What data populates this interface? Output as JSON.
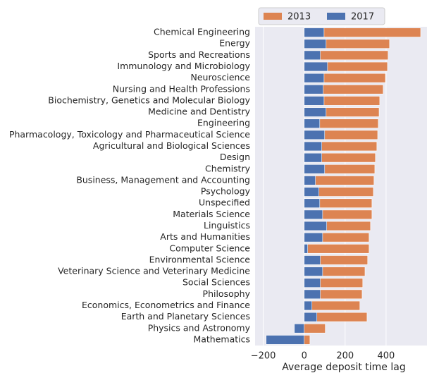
{
  "chart_data": {
    "type": "barh",
    "categories": [
      "Chemical Engineering",
      "Energy",
      "Sports and Recreations",
      "Immunology and Microbiology",
      "Neuroscience",
      "Nursing and Health Professions",
      "Biochemistry, Genetics and Molecular Biology",
      "Medicine and Dentistry",
      "Engineering",
      "Pharmacology, Toxicology and Pharmaceutical Science",
      "Agricultural and Biological Sciences",
      "Design",
      "Chemistry",
      "Business, Management and Accounting",
      "Psychology",
      "Unspecified",
      "Materials Science",
      "Linguistics",
      "Arts and Humanities",
      "Computer Science",
      "Environmental Science",
      "Veterinary Science and Veterinary Medicine",
      "Social Sciences",
      "Philosophy",
      "Economics, Econometrics and Finance",
      "Earth and Planetary Sciences",
      "Physics and Astronomy",
      "Mathematics"
    ],
    "series": [
      {
        "name": "2013",
        "color": "#dd8452",
        "values": [
          569,
          417,
          410,
          407,
          397,
          386,
          369,
          366,
          362,
          359,
          355,
          348,
          345,
          341,
          338,
          331,
          331,
          324,
          317,
          317,
          310,
          297,
          286,
          283,
          272,
          307,
          103,
          28
        ]
      },
      {
        "name": "2017",
        "color": "#4c72b0",
        "values": [
          97,
          107,
          79,
          114,
          97,
          93,
          97,
          107,
          76,
          100,
          86,
          86,
          100,
          55,
          72,
          76,
          90,
          110,
          90,
          17,
          79,
          90,
          79,
          79,
          38,
          62,
          -48,
          -186
        ]
      }
    ],
    "xlabel": "Average deposit time lag",
    "xlim": [
      -240,
      600
    ],
    "xticks": [
      {
        "value": -200,
        "label": "−200"
      },
      0,
      200,
      400
    ],
    "grid": true,
    "legend": "top"
  }
}
